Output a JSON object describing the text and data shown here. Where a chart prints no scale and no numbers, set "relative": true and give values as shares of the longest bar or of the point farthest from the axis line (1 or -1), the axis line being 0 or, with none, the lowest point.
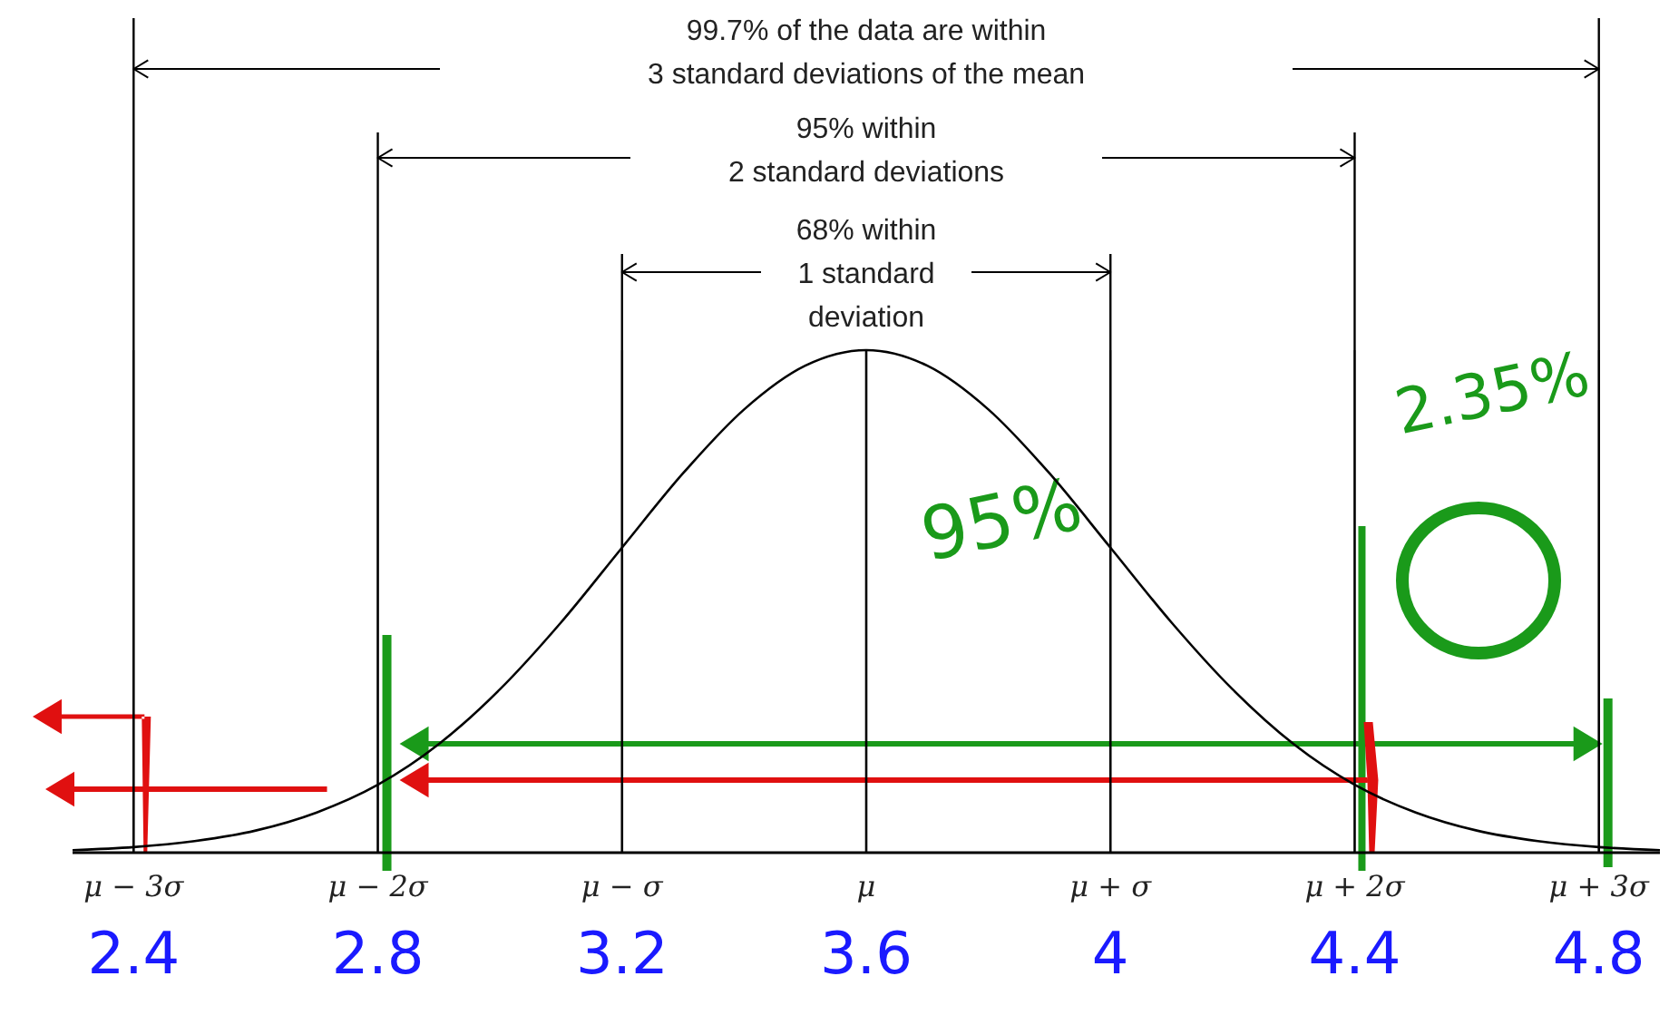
{
  "chart_data": {
    "type": "line",
    "relative": true,
    "x": [
      2.3,
      2.4,
      2.5,
      2.6,
      2.7,
      2.8,
      2.9,
      3.0,
      3.1,
      3.2,
      3.3,
      3.4,
      3.5,
      3.6,
      3.7,
      3.8,
      3.9,
      4.0,
      4.1,
      4.2,
      4.3,
      4.4,
      4.5,
      4.6,
      4.7,
      4.8,
      4.9
    ],
    "series": [
      {
        "color": "#000000",
        "values": [
          0.005,
          0.011,
          0.023,
          0.044,
          0.08,
          0.135,
          0.216,
          0.325,
          0.458,
          0.607,
          0.755,
          0.882,
          0.969,
          1,
          0.969,
          0.882,
          0.755,
          0.607,
          0.458,
          0.325,
          0.216,
          0.135,
          0.08,
          0.044,
          0.023,
          0.011,
          0.005
        ]
      }
    ],
    "xlim": [
      2.3,
      4.9
    ],
    "xticks": [
      2.4,
      2.8,
      3.2,
      3.6,
      4,
      4.4,
      4.8
    ],
    "annotations": [
      "99.7% of the data are within\n3 standard deviations of the mean",
      "95% within\n2 standard deviations",
      "68% within\n1 standard\ndeviation",
      "95%",
      "2.35%",
      "μ − 3σ",
      "μ − 2σ",
      "μ − σ",
      "μ",
      "μ + σ",
      "μ + 2σ",
      "μ + 3σ"
    ],
    "marker": "none",
    "grid": "x",
    "legend": false
  }
}
